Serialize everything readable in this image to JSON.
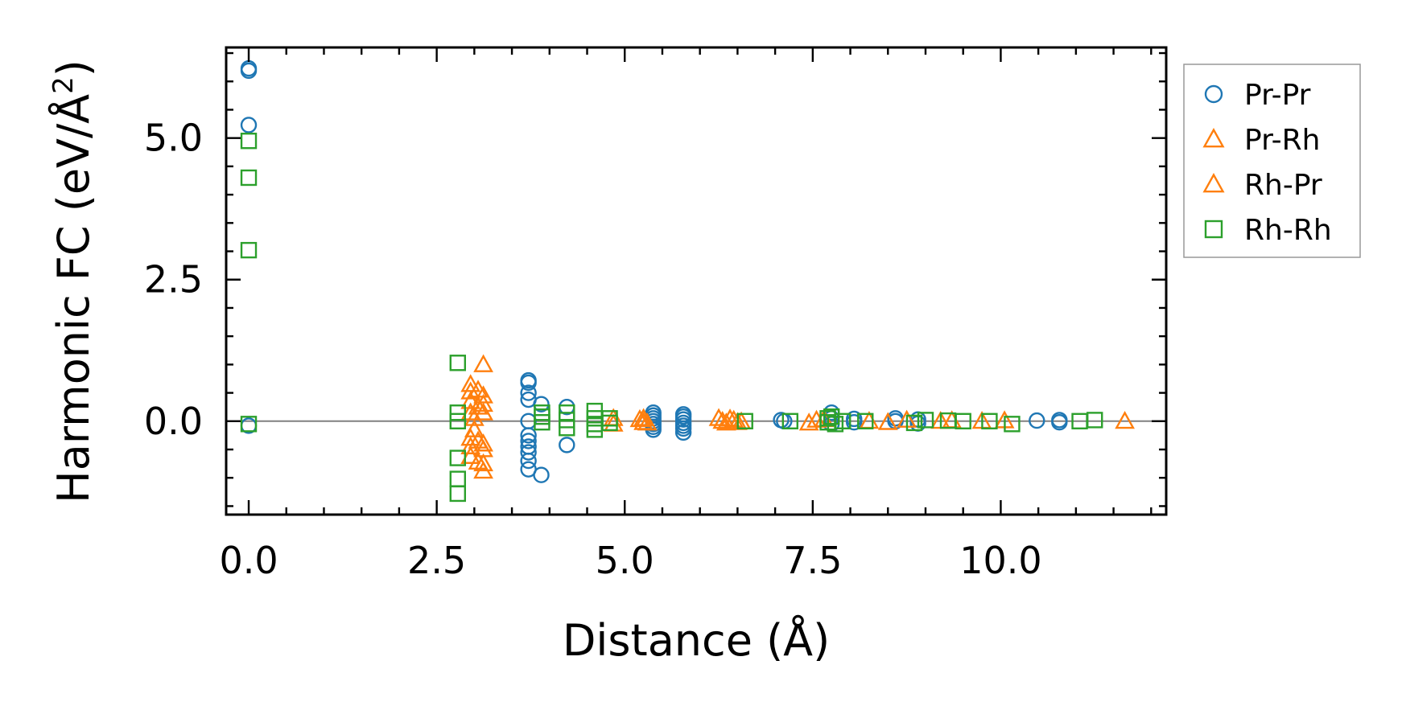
{
  "chart_data": {
    "type": "scatter",
    "xlabel": "Distance (Å)",
    "ylabel_main": "Harmonic FC (eV/Å",
    "ylabel_sup": "2",
    "ylabel_close": ")",
    "xlim": [
      -0.3,
      12.2
    ],
    "ylim": [
      -1.65,
      6.6
    ],
    "xticks": [
      0.0,
      2.5,
      5.0,
      7.5,
      10.0
    ],
    "xtick_labels": [
      "0.0",
      "2.5",
      "5.0",
      "7.5",
      "10.0"
    ],
    "yticks": [
      0.0,
      2.5,
      5.0
    ],
    "ytick_labels": [
      "0.0",
      "2.5",
      "5.0"
    ],
    "zero_line": true,
    "grid": false,
    "legend_position": "outside-right-top",
    "series": [
      {
        "name": "Pr-Pr",
        "marker": "circle",
        "color": "#1f77b4",
        "points": [
          [
            0.0,
            6.23
          ],
          [
            0.0,
            6.19
          ],
          [
            0.0,
            5.23
          ],
          [
            0.0,
            -0.08
          ],
          [
            3.72,
            0.72
          ],
          [
            3.72,
            0.68
          ],
          [
            3.72,
            0.5
          ],
          [
            3.72,
            0.38
          ],
          [
            3.72,
            0.0
          ],
          [
            3.72,
            -0.25
          ],
          [
            3.72,
            -0.35
          ],
          [
            3.72,
            -0.45
          ],
          [
            3.72,
            -0.55
          ],
          [
            3.72,
            -0.7
          ],
          [
            3.72,
            -0.85
          ],
          [
            3.89,
            0.3
          ],
          [
            3.89,
            -0.95
          ],
          [
            4.23,
            0.25
          ],
          [
            4.23,
            -0.42
          ],
          [
            5.38,
            0.15
          ],
          [
            5.38,
            0.1
          ],
          [
            5.38,
            0.05
          ],
          [
            5.38,
            0.0
          ],
          [
            5.38,
            -0.05
          ],
          [
            5.38,
            -0.1
          ],
          [
            5.38,
            -0.15
          ],
          [
            5.78,
            0.12
          ],
          [
            5.78,
            0.08
          ],
          [
            5.78,
            0.03
          ],
          [
            5.78,
            -0.03
          ],
          [
            5.78,
            -0.08
          ],
          [
            5.78,
            -0.13
          ],
          [
            5.78,
            -0.2
          ],
          [
            7.08,
            0.02
          ],
          [
            7.12,
            0.0
          ],
          [
            7.75,
            0.15
          ],
          [
            7.75,
            0.05
          ],
          [
            7.75,
            -0.05
          ],
          [
            8.05,
            0.04
          ],
          [
            8.05,
            -0.02
          ],
          [
            8.6,
            0.05
          ],
          [
            8.6,
            0.0
          ],
          [
            8.9,
            0.03
          ],
          [
            8.9,
            -0.04
          ],
          [
            10.48,
            0.01
          ],
          [
            10.78,
            0.02
          ],
          [
            10.78,
            -0.02
          ]
        ]
      },
      {
        "name": "Pr-Rh",
        "marker": "triangle",
        "color": "#ff7f0e",
        "points": [
          [
            2.95,
            0.65
          ],
          [
            2.95,
            0.52
          ],
          [
            2.95,
            0.35
          ],
          [
            2.95,
            0.15
          ],
          [
            2.95,
            -0.3
          ],
          [
            2.95,
            -0.45
          ],
          [
            2.95,
            -0.62
          ],
          [
            3.0,
            0.05
          ],
          [
            3.0,
            -0.15
          ],
          [
            3.05,
            0.55
          ],
          [
            3.05,
            0.25
          ],
          [
            3.05,
            -0.35
          ],
          [
            3.05,
            -0.72
          ],
          [
            3.12,
            1.0
          ],
          [
            3.12,
            0.45
          ],
          [
            3.12,
            0.3
          ],
          [
            3.12,
            0.15
          ],
          [
            3.12,
            -0.4
          ],
          [
            3.12,
            -0.5
          ],
          [
            3.12,
            -0.75
          ],
          [
            3.12,
            -0.88
          ],
          [
            4.85,
            0.05
          ],
          [
            4.85,
            -0.05
          ],
          [
            5.25,
            0.05
          ],
          [
            5.25,
            -0.02
          ],
          [
            6.25,
            0.05
          ],
          [
            6.3,
            0.0
          ],
          [
            6.35,
            -0.03
          ],
          [
            6.4,
            0.04
          ],
          [
            6.5,
            -0.02
          ],
          [
            7.55,
            0.02
          ],
          [
            8.25,
            0.0
          ],
          [
            8.75,
            0.02
          ],
          [
            9.2,
            0.0
          ],
          [
            10.05,
            0.01
          ],
          [
            11.65,
            0.0
          ]
        ]
      },
      {
        "name": "Rh-Pr",
        "marker": "triangle",
        "color": "#ff7f0e",
        "points": [
          [
            5.2,
            0.03
          ],
          [
            5.3,
            -0.03
          ],
          [
            6.45,
            0.02
          ],
          [
            6.55,
            -0.01
          ],
          [
            7.45,
            -0.03
          ],
          [
            7.65,
            0.03
          ],
          [
            8.5,
            -0.02
          ],
          [
            9.35,
            0.01
          ],
          [
            9.75,
            0.0
          ]
        ]
      },
      {
        "name": "Rh-Rh",
        "marker": "square",
        "color": "#2ca02c",
        "points": [
          [
            0.0,
            4.95
          ],
          [
            0.0,
            4.3
          ],
          [
            0.0,
            3.02
          ],
          [
            0.0,
            -0.05
          ],
          [
            2.78,
            1.03
          ],
          [
            2.78,
            0.15
          ],
          [
            2.78,
            0.0
          ],
          [
            2.78,
            -0.65
          ],
          [
            2.78,
            -1.02
          ],
          [
            2.78,
            -1.28
          ],
          [
            3.9,
            0.15
          ],
          [
            3.9,
            0.08
          ],
          [
            3.9,
            -0.02
          ],
          [
            4.23,
            0.15
          ],
          [
            4.23,
            0.02
          ],
          [
            4.23,
            -0.12
          ],
          [
            4.6,
            0.18
          ],
          [
            4.6,
            0.05
          ],
          [
            4.6,
            -0.05
          ],
          [
            4.6,
            -0.15
          ],
          [
            4.8,
            0.05
          ],
          [
            4.8,
            -0.03
          ],
          [
            6.6,
            0.0
          ],
          [
            7.2,
            0.0
          ],
          [
            7.7,
            0.05
          ],
          [
            7.7,
            -0.02
          ],
          [
            7.75,
            0.08
          ],
          [
            7.8,
            -0.05
          ],
          [
            7.9,
            0.0
          ],
          [
            8.2,
            0.0
          ],
          [
            8.85,
            -0.03
          ],
          [
            9.0,
            0.02
          ],
          [
            9.3,
            0.01
          ],
          [
            9.5,
            0.0
          ],
          [
            9.85,
            0.0
          ],
          [
            10.15,
            -0.05
          ],
          [
            11.05,
            0.0
          ],
          [
            11.25,
            0.02
          ]
        ]
      }
    ]
  }
}
